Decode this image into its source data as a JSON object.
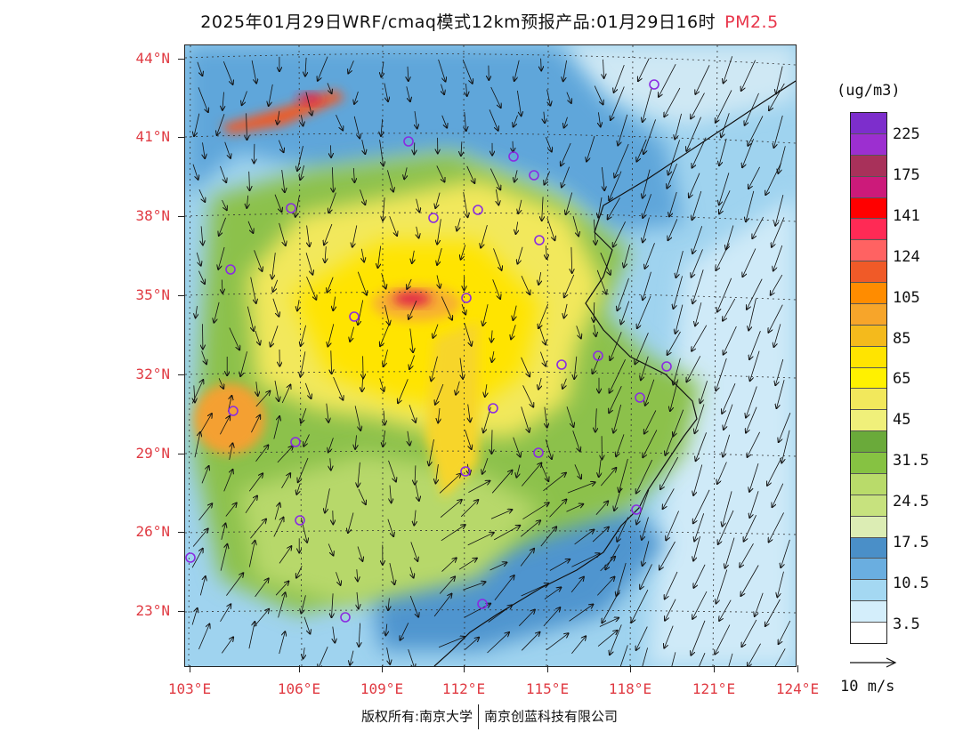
{
  "title": {
    "main": "2025年01月29日WRF/cmaq模式12km预报产品:01月29日16时",
    "pollutant": "PM2.5"
  },
  "axes": {
    "lat_labels": [
      "44°N",
      "41°N",
      "38°N",
      "35°N",
      "32°N",
      "29°N",
      "26°N",
      "23°N"
    ],
    "lon_labels": [
      "103°E",
      "106°E",
      "109°E",
      "112°E",
      "115°E",
      "118°E",
      "121°E",
      "124°E"
    ]
  },
  "legend": {
    "unit": "(ug/m3)",
    "labels": [
      "225",
      "175",
      "141",
      "124",
      "105",
      "85",
      "65",
      "45",
      "31.5",
      "24.5",
      "17.5",
      "10.5",
      "3.5"
    ],
    "colors": [
      "#7d2ecc",
      "#9c2fd0",
      "#a8315a",
      "#cc1a7a",
      "#ff0000",
      "#ff2a55",
      "#ff6262",
      "#f05a28",
      "#ff8c00",
      "#f7a52a",
      "#f4ba1c",
      "#ffe400",
      "#fff100",
      "#f2e85c",
      "#f0f07a",
      "#6aaa3a",
      "#86c242",
      "#b9db6a",
      "#c7e27e",
      "#dcedb4",
      "#4a8fc8",
      "#6aaee0",
      "#a4d8f2",
      "#d4eefb",
      "#ffffff"
    ]
  },
  "wind_vector": {
    "label": "10 m/s"
  },
  "credit": {
    "left": "版权所有:南京大学",
    "right": "南京创蓝科技有限公司"
  }
}
